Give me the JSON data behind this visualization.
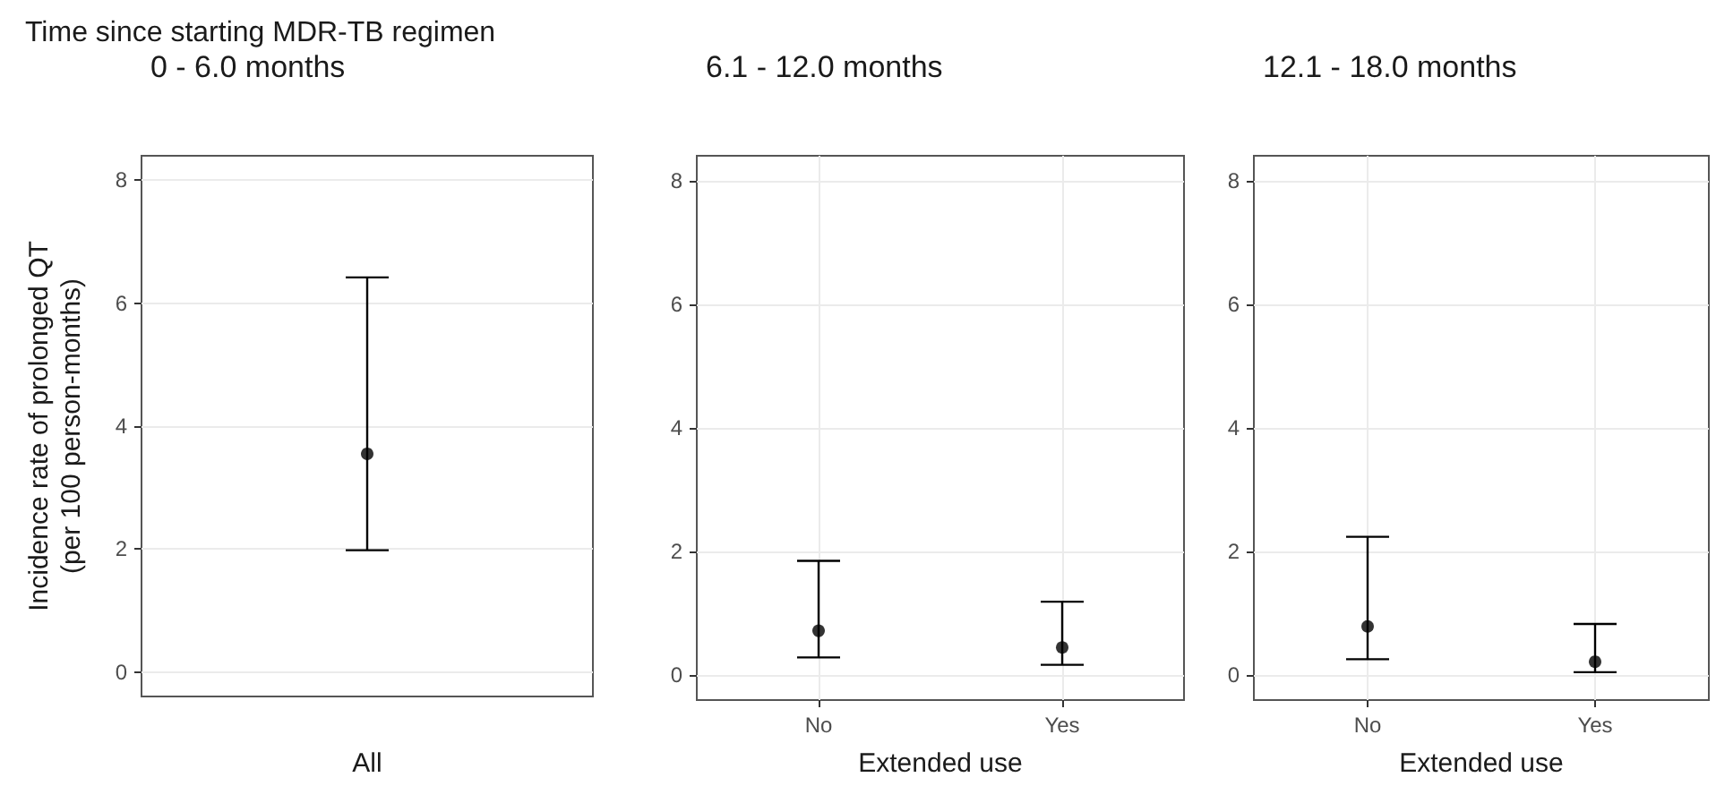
{
  "chart_data": [
    {
      "type": "scatter",
      "title": "0 - 6.0 months",
      "annotations": [
        "Time since starting MDR-TB regimen"
      ],
      "xlabel": "All",
      "ylabel": "Incidence rate of prolonged QT\n(per 100 person-months)",
      "categories": [
        null
      ],
      "values": [
        3.55
      ],
      "errors": [
        [
          1.98,
          6.42
        ]
      ],
      "color": "#000000",
      "ylim": [
        -0.4,
        8.4
      ],
      "yticks": [
        0,
        2,
        4,
        6,
        8
      ],
      "grid": true,
      "marker": "circle"
    },
    {
      "type": "scatter",
      "title": "6.1 - 12.0 months",
      "xlabel": "Extended use",
      "categories": [
        "No",
        "Yes"
      ],
      "values": [
        0.72,
        0.45
      ],
      "errors": [
        [
          0.29,
          1.85
        ],
        [
          0.17,
          1.19
        ]
      ],
      "color": "#000000",
      "ylim": [
        -0.4,
        8.4
      ],
      "yticks": [
        0,
        2,
        4,
        6,
        8
      ],
      "grid": true,
      "marker": "circle"
    },
    {
      "type": "scatter",
      "title": "12.1 - 18.0 months",
      "xlabel": "Extended use",
      "categories": [
        "No",
        "Yes"
      ],
      "values": [
        0.79,
        0.22
      ],
      "errors": [
        [
          0.26,
          2.24
        ],
        [
          0.05,
          0.83
        ]
      ],
      "color": "#000000",
      "ylim": [
        -0.4,
        8.4
      ],
      "yticks": [
        0,
        2,
        4,
        6,
        8
      ],
      "grid": true,
      "marker": "circle"
    }
  ]
}
